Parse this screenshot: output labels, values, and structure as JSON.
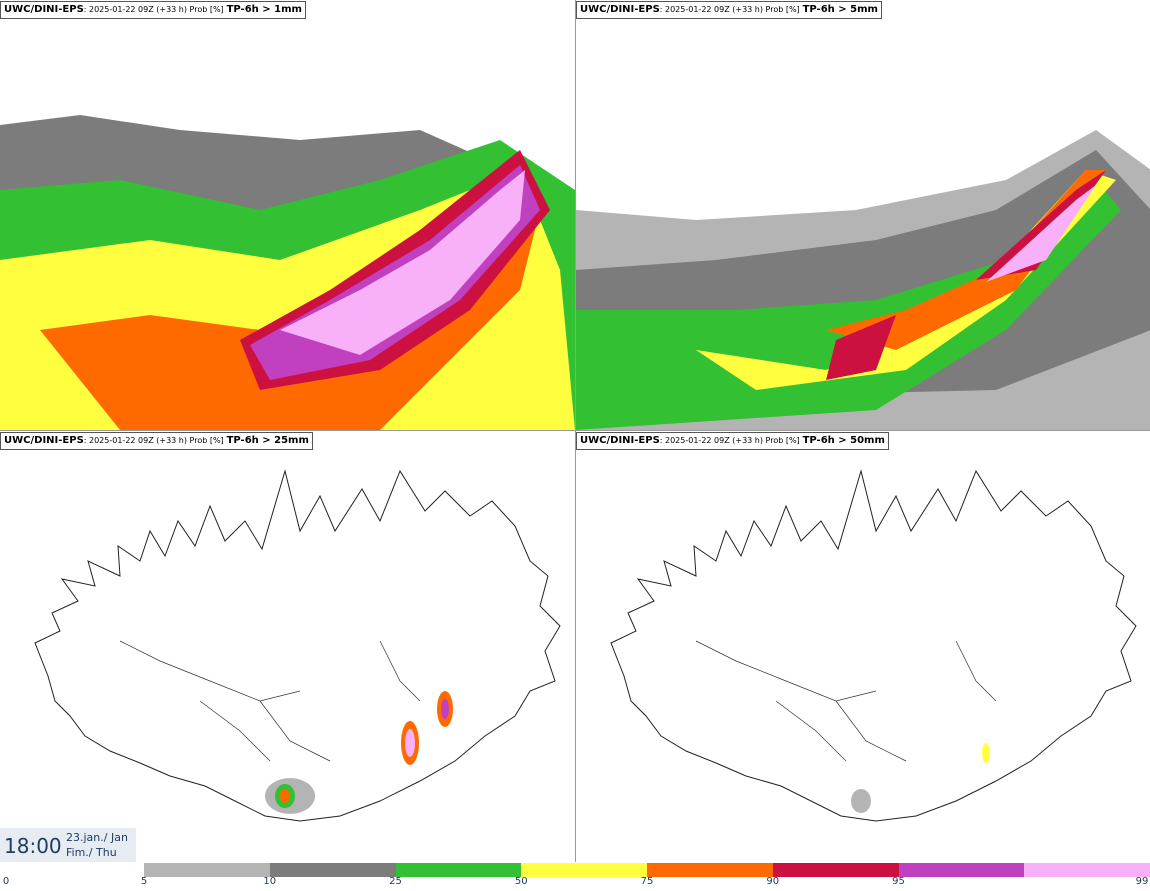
{
  "panels": [
    {
      "model": "UWC/DINI-EPS",
      "meta": ": 2025-01-22 09Z (+33 h) Prob [%]",
      "threshold": "TP-6h > 1mm"
    },
    {
      "model": "UWC/DINI-EPS",
      "meta": ": 2025-01-22 09Z (+33 h) Prob [%]",
      "threshold": "TP-6h > 5mm"
    },
    {
      "model": "UWC/DINI-EPS",
      "meta": ": 2025-01-22 09Z (+33 h) Prob [%]",
      "threshold": "TP-6h > 25mm"
    },
    {
      "model": "UWC/DINI-EPS",
      "meta": ": 2025-01-22 09Z (+33 h) Prob [%]",
      "threshold": "TP-6h > 50mm"
    }
  ],
  "valid_time": {
    "time": "18:00",
    "date_line1": "23.jan./ Jan",
    "date_line2": "Fim./ Thu"
  },
  "legend": {
    "ticks": [
      "0",
      "5",
      "10",
      "25",
      "50",
      "75",
      "90",
      "95",
      "99"
    ],
    "colors": [
      "#b4b4b4",
      "#7c7c7c",
      "#33c033",
      "#ffff40",
      "#ff6a00",
      "#cc1040",
      "#c040c0",
      "#f8b0f8"
    ]
  }
}
